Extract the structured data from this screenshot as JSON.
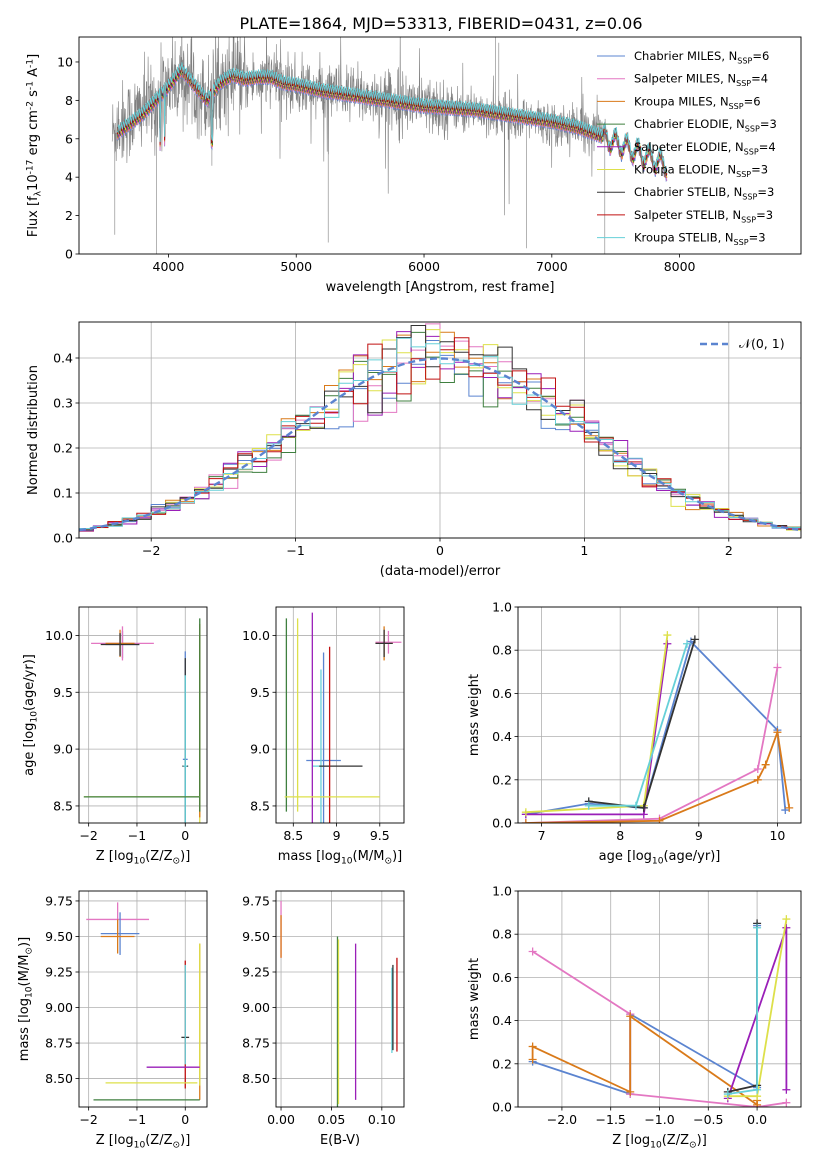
{
  "figure_title": "PLATE=1864, MJD=53313, FIBERID=0431, z=0.06",
  "series": [
    {
      "label": "Chabrier MILES, N$_{SSP}$=6",
      "color": "#5b84d0"
    },
    {
      "label": "Salpeter MILES, N$_{SSP}$=4",
      "color": "#e377c2"
    },
    {
      "label": "Kroupa MILES, N$_{SSP}$=6",
      "color": "#d97a1a"
    },
    {
      "label": "Chabrier ELODIE, N$_{SSP}$=3",
      "color": "#3f7f3f"
    },
    {
      "label": "Salpeter ELODIE, N$_{SSP}$=4",
      "color": "#9a1fb8"
    },
    {
      "label": "Kroupa ELODIE, N$_{SSP}$=3",
      "color": "#dde04a"
    },
    {
      "label": "Chabrier STELIB, N$_{SSP}$=3",
      "color": "#333333"
    },
    {
      "label": "Salpeter STELIB, N$_{SSP}$=3",
      "color": "#c01010"
    },
    {
      "label": "Kroupa STELIB, N$_{SSP}$=3",
      "color": "#66d0d8"
    }
  ],
  "chart_data": [
    {
      "id": "spectrum",
      "type": "line",
      "xlabel": "wavelength [Angstrom, rest frame]",
      "ylabel": "Flux [f$_\\lambda$10$^{-17}$ erg cm$^{-2}$ s$^{-1}$ A$^{-1}$]",
      "xlim": [
        3300,
        8950
      ],
      "ylim": [
        0,
        11.3
      ],
      "xticks": [
        4000,
        5000,
        6000,
        7000,
        8000
      ],
      "yticks": [
        0,
        2,
        4,
        6,
        8,
        10
      ],
      "legend": "upper right",
      "observed": {
        "x": [
          3560,
          3600,
          3700,
          3800,
          3900,
          4000,
          4100,
          4200,
          4300,
          4400,
          4500,
          4600,
          4700,
          4800,
          4900,
          5000,
          5200,
          5400,
          5600,
          5800,
          6000,
          6200,
          6400,
          6600,
          6800,
          7000,
          7200,
          7420
        ],
        "y": [
          6.2,
          6.7,
          7.0,
          7.6,
          7.8,
          8.8,
          9.2,
          8.9,
          8.0,
          8.9,
          9.1,
          9.0,
          9.1,
          9.2,
          8.8,
          8.7,
          8.5,
          8.3,
          8.2,
          8.0,
          7.7,
          7.6,
          7.5,
          7.3,
          7.0,
          6.8,
          6.6,
          6.4
        ]
      },
      "model": {
        "x": [
          3600,
          3700,
          3800,
          3900,
          4000,
          4100,
          4200,
          4300,
          4400,
          4500,
          4600,
          4700,
          4800,
          4900,
          5000,
          5200,
          5400,
          5600,
          5800,
          6000,
          6200,
          6400,
          6600,
          6800,
          7000,
          7200,
          7400,
          7600,
          7800,
          7900
        ],
        "y": [
          6.3,
          6.8,
          7.3,
          8.0,
          8.7,
          9.6,
          8.8,
          8.0,
          8.9,
          9.3,
          9.1,
          9.2,
          9.2,
          8.9,
          8.8,
          8.5,
          8.3,
          8.1,
          7.9,
          7.7,
          7.6,
          7.5,
          7.3,
          7.1,
          6.9,
          6.6,
          6.1,
          5.5,
          4.9,
          4.6
        ]
      }
    },
    {
      "id": "residuals",
      "type": "histogram",
      "xlabel": "(data-model)/error",
      "ylabel": "Normed distribution",
      "xlim": [
        -2.5,
        2.5
      ],
      "ylim": [
        0,
        0.48
      ],
      "xticks": [
        -2,
        -1,
        0,
        1,
        2
      ],
      "yticks": [
        0.0,
        0.1,
        0.2,
        0.3,
        0.4
      ],
      "legend": "upper right",
      "reference_label": "$\\mathcal{N}(0,1)$",
      "bin_width": 0.1
    },
    {
      "id": "age_vs_Z",
      "type": "scatter",
      "xlabel": "Z [log$_{10}$(Z/Z$_\\odot$)]",
      "ylabel": "age  [log$_{10}$(age/yr)]",
      "xlim": [
        -2.2,
        0.45
      ],
      "ylim": [
        8.35,
        10.25
      ],
      "xticks": [
        -2,
        -1,
        0
      ],
      "yticks": [
        8.5,
        9.0,
        9.5,
        10.0
      ],
      "points": [
        {
          "x": -1.3,
          "y": 9.92,
          "xerr": 0.35,
          "yerr": 0.12,
          "s": 0
        },
        {
          "x": -1.3,
          "y": 9.93,
          "xerr": 0.65,
          "yerr": 0.15,
          "s": 1
        },
        {
          "x": -1.35,
          "y": 9.93,
          "xerr": 0.3,
          "yerr": 0.12,
          "s": 2
        },
        {
          "x": -1.35,
          "y": 9.92,
          "xerr": 0.4,
          "yerr": 0.1,
          "s": 6
        },
        {
          "x": 0.0,
          "y": 8.91,
          "xerr": 0.05,
          "yerr": 0.95,
          "s": 0
        },
        {
          "x": 0.0,
          "y": 8.85,
          "xerr": 0.06,
          "yerr": 0.95,
          "s": 6
        },
        {
          "x": 0.0,
          "y": 8.85,
          "xerr": 0.04,
          "yerr": 0.8,
          "s": 8
        },
        {
          "x": 0.3,
          "y": 9.1,
          "xerr": 0.0,
          "yerr": 0.9,
          "s": 5
        },
        {
          "x": 0.3,
          "y": 9.25,
          "xerr": 0.0,
          "yerr": 0.85,
          "s": 2
        },
        {
          "x": 0.3,
          "y": 9.3,
          "xerr": 0.0,
          "yerr": 0.85,
          "s": 3
        },
        {
          "x": -0.9,
          "y": 8.58,
          "xerr": 1.2,
          "yerr": 0.0,
          "s": 5
        },
        {
          "x": -0.9,
          "y": 8.58,
          "xerr": 1.2,
          "yerr": 0.0,
          "s": 3
        }
      ]
    },
    {
      "id": "age_vs_mass",
      "type": "scatter",
      "xlabel": "mass [log$_{10}$(M/M$_\\odot$)]",
      "ylabel": "",
      "xlim": [
        8.3,
        9.78
      ],
      "ylim": [
        8.35,
        10.25
      ],
      "xticks": [
        8.5,
        9.0,
        9.5
      ],
      "yticks": [
        8.5,
        9.0,
        9.5,
        10.0
      ],
      "points": [
        {
          "x": 9.55,
          "y": 9.93,
          "xerr": 0.1,
          "yerr": 0.15,
          "s": 2
        },
        {
          "x": 9.6,
          "y": 9.94,
          "xerr": 0.15,
          "yerr": 0.1,
          "s": 1
        },
        {
          "x": 9.55,
          "y": 9.93,
          "xerr": 0.1,
          "yerr": 0.12,
          "s": 6
        },
        {
          "x": 8.85,
          "y": 8.9,
          "xerr": 0.2,
          "yerr": 0.95,
          "s": 0
        },
        {
          "x": 8.82,
          "y": 8.85,
          "xerr": 0.1,
          "yerr": 0.85,
          "s": 8
        },
        {
          "x": 9.05,
          "y": 8.85,
          "xerr": 0.25,
          "yerr": 0.0,
          "s": 6
        },
        {
          "x": 8.92,
          "y": 9.05,
          "xerr": 0.0,
          "yerr": 0.85,
          "s": 7
        },
        {
          "x": 8.72,
          "y": 9.2,
          "xerr": 0.0,
          "yerr": 1.0,
          "s": 4
        },
        {
          "x": 8.42,
          "y": 9.3,
          "xerr": 0.0,
          "yerr": 0.85,
          "s": 3
        },
        {
          "x": 8.55,
          "y": 9.3,
          "xerr": 0.0,
          "yerr": 0.85,
          "s": 5
        },
        {
          "x": 8.95,
          "y": 8.58,
          "xerr": 0.55,
          "yerr": 0.0,
          "s": 5
        }
      ]
    },
    {
      "id": "weight_vs_age",
      "type": "line",
      "xlabel": "age  [log$_{10}$(age/yr)]",
      "ylabel": "mass weight",
      "xlim": [
        6.7,
        10.3
      ],
      "ylim": [
        0,
        1.0
      ],
      "xticks": [
        7,
        8,
        9,
        10
      ],
      "yticks": [
        0.0,
        0.2,
        0.4,
        0.6,
        0.8,
        1.0
      ],
      "lines": [
        {
          "s": 0,
          "x": [
            6.8,
            7.6,
            8.3,
            8.9,
            10.0,
            10.1
          ],
          "y": [
            0.04,
            0.09,
            0.07,
            0.84,
            0.43,
            0.06
          ]
        },
        {
          "s": 1,
          "x": [
            6.8,
            8.5,
            9.75,
            10.0
          ],
          "y": [
            0.0,
            0.02,
            0.25,
            0.72
          ]
        },
        {
          "s": 2,
          "x": [
            6.8,
            8.5,
            9.75,
            9.85,
            10.0,
            10.15
          ],
          "y": [
            0.0,
            0.01,
            0.2,
            0.27,
            0.42,
            0.07
          ]
        },
        {
          "s": 4,
          "x": [
            6.8,
            8.3,
            8.6
          ],
          "y": [
            0.04,
            0.04,
            0.83
          ]
        },
        {
          "s": 5,
          "x": [
            6.8,
            8.3,
            8.6
          ],
          "y": [
            0.05,
            0.08,
            0.87
          ]
        },
        {
          "s": 6,
          "x": [
            7.6,
            8.3,
            8.95
          ],
          "y": [
            0.1,
            0.07,
            0.85
          ]
        },
        {
          "s": 8,
          "x": [
            7.6,
            8.2,
            8.85
          ],
          "y": [
            0.08,
            0.08,
            0.83
          ]
        }
      ]
    },
    {
      "id": "mass_vs_Z",
      "type": "scatter",
      "xlabel": "Z [log$_{10}$(Z/Z$_\\odot$)]",
      "ylabel": "mass [log$_{10}$(M/M$_\\odot$)]",
      "xlim": [
        -2.2,
        0.45
      ],
      "ylim": [
        8.3,
        9.82
      ],
      "xticks": [
        -2,
        -1,
        0
      ],
      "yticks": [
        8.5,
        8.75,
        9.0,
        9.25,
        9.5,
        9.75
      ],
      "points": [
        {
          "x": -1.4,
          "y": 9.62,
          "xerr": 0.65,
          "yerr": 0.12,
          "s": 1
        },
        {
          "x": -1.35,
          "y": 9.52,
          "xerr": 0.4,
          "yerr": 0.15,
          "s": 0
        },
        {
          "x": -1.4,
          "y": 9.5,
          "xerr": 0.35,
          "yerr": 0.12,
          "s": 2
        },
        {
          "x": 0.0,
          "y": 8.88,
          "xerr": 0.0,
          "yerr": 0.45,
          "s": 7
        },
        {
          "x": 0.0,
          "y": 8.79,
          "xerr": 0.08,
          "yerr": 0.0,
          "s": 6
        },
        {
          "x": 0.0,
          "y": 8.95,
          "xerr": 0.0,
          "yerr": 0.35,
          "s": 8
        },
        {
          "x": 0.3,
          "y": 8.9,
          "xerr": 0.0,
          "yerr": 0.55,
          "s": 2
        },
        {
          "x": 0.3,
          "y": 8.95,
          "xerr": 0.0,
          "yerr": 0.5,
          "s": 5
        },
        {
          "x": -0.25,
          "y": 8.58,
          "xerr": 0.55,
          "yerr": 0.0,
          "s": 4
        },
        {
          "x": -0.7,
          "y": 8.47,
          "xerr": 0.95,
          "yerr": 0.0,
          "s": 5
        },
        {
          "x": -0.8,
          "y": 8.35,
          "xerr": 1.1,
          "yerr": 0.0,
          "s": 3
        }
      ]
    },
    {
      "id": "mass_vs_EBV",
      "type": "scatter",
      "xlabel": "E(B-V)",
      "ylabel": "",
      "xlim": [
        -0.005,
        0.122
      ],
      "ylim": [
        8.3,
        9.82
      ],
      "xticks": [
        0.0,
        0.05,
        0.1
      ],
      "yticks": [
        8.5,
        8.75,
        9.0,
        9.25,
        9.5,
        9.75
      ],
      "points": [
        {
          "x": 0.0,
          "y": 9.55,
          "xerr": 0.0,
          "yerr": 0.2,
          "s": 1
        },
        {
          "x": 0.0,
          "y": 9.5,
          "xerr": 0.0,
          "yerr": 0.15,
          "s": 2
        },
        {
          "x": 0.056,
          "y": 8.9,
          "xerr": 0.0,
          "yerr": 0.6,
          "s": 3
        },
        {
          "x": 0.057,
          "y": 8.9,
          "xerr": 0.0,
          "yerr": 0.58,
          "s": 5
        },
        {
          "x": 0.074,
          "y": 8.9,
          "xerr": 0.0,
          "yerr": 0.55,
          "s": 4
        },
        {
          "x": 0.11,
          "y": 8.98,
          "xerr": 0.0,
          "yerr": 0.3,
          "s": 8
        },
        {
          "x": 0.111,
          "y": 9.0,
          "xerr": 0.0,
          "yerr": 0.3,
          "s": 6
        },
        {
          "x": 0.115,
          "y": 9.02,
          "xerr": 0.0,
          "yerr": 0.33,
          "s": 7
        }
      ]
    },
    {
      "id": "weight_vs_Z",
      "type": "line",
      "xlabel": "Z [log$_{10}$(Z/Z$_\\odot$)]",
      "ylabel": "mass weight",
      "xlim": [
        -2.45,
        0.45
      ],
      "ylim": [
        0,
        1.0
      ],
      "xticks": [
        -2.0,
        -1.5,
        -1.0,
        -0.5,
        0.0
      ],
      "yticks": [
        0.0,
        0.2,
        0.4,
        0.6,
        0.8,
        1.0
      ],
      "lines": [
        {
          "s": 0,
          "x": [
            -2.3,
            -1.3,
            -1.3,
            0.0,
            0.0
          ],
          "y": [
            0.21,
            0.06,
            0.43,
            0.09,
            0.84
          ]
        },
        {
          "s": 1,
          "x": [
            -2.3,
            -1.3,
            -1.3,
            0.0,
            0.3
          ],
          "y": [
            0.72,
            0.43,
            0.06,
            0.0,
            0.02
          ]
        },
        {
          "s": 2,
          "x": [
            -2.3,
            -2.3,
            -1.3,
            -1.3,
            0.0,
            0.0
          ],
          "y": [
            0.22,
            0.28,
            0.07,
            0.42,
            0.01,
            0.03
          ]
        },
        {
          "s": 4,
          "x": [
            -0.3,
            0.3,
            0.3
          ],
          "y": [
            0.04,
            0.83,
            0.08
          ]
        },
        {
          "s": 5,
          "x": [
            -0.3,
            0.0,
            0.3
          ],
          "y": [
            0.05,
            0.05,
            0.87
          ]
        },
        {
          "s": 6,
          "x": [
            -0.3,
            0.0,
            0.0
          ],
          "y": [
            0.07,
            0.1,
            0.85
          ]
        },
        {
          "s": 8,
          "x": [
            -0.3,
            0.0,
            0.0
          ],
          "y": [
            0.06,
            0.08,
            0.83
          ]
        }
      ]
    }
  ]
}
